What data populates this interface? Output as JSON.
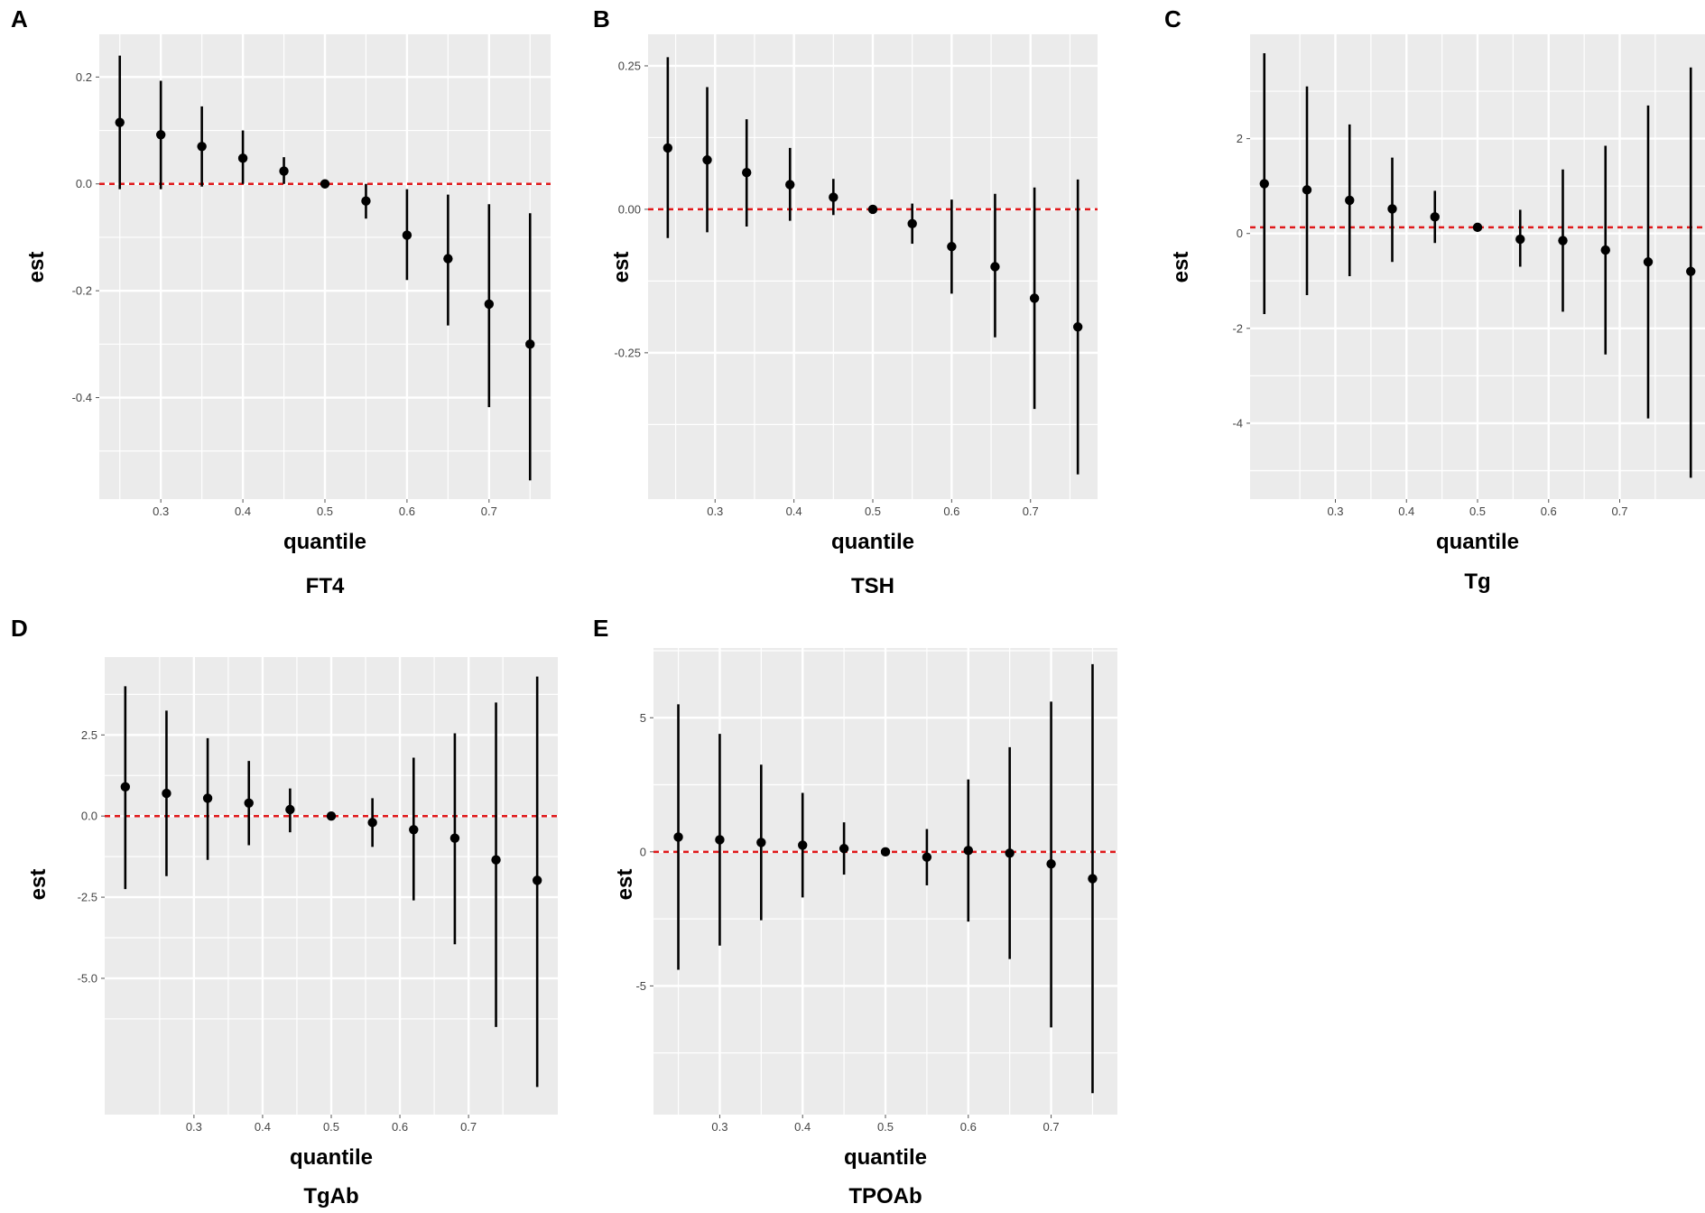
{
  "figure": {
    "colors": {
      "panel_bg": "#ebebeb",
      "grid": "#ffffff",
      "point": "#000000",
      "ref_line": "#e0191b"
    }
  },
  "chart_data": [
    {
      "type": "scatter",
      "label": "A",
      "title": "FT4",
      "xlabel": "quantile",
      "ylabel": "est",
      "xlim": [
        0.225,
        0.775
      ],
      "ylim": [
        -0.59,
        0.28
      ],
      "x_ticks": [
        0.3,
        0.4,
        0.5,
        0.6,
        0.7
      ],
      "x_tick_labels": [
        "0.3",
        "0.4",
        "0.5",
        "0.6",
        "0.7"
      ],
      "y_ticks": [
        0.2,
        0.0,
        -0.2,
        -0.4
      ],
      "y_tick_labels": [
        "0.2",
        "0.0",
        "-0.2",
        "-0.4"
      ],
      "reference_line": 0.0,
      "points": [
        {
          "x": 0.25,
          "est": 0.115,
          "lower": -0.01,
          "upper": 0.24
        },
        {
          "x": 0.3,
          "est": 0.092,
          "lower": -0.01,
          "upper": 0.193
        },
        {
          "x": 0.35,
          "est": 0.07,
          "lower": -0.005,
          "upper": 0.145
        },
        {
          "x": 0.4,
          "est": 0.048,
          "lower": 0.0,
          "upper": 0.1
        },
        {
          "x": 0.45,
          "est": 0.024,
          "lower": 0.0,
          "upper": 0.05
        },
        {
          "x": 0.5,
          "est": 0.0,
          "lower": 0.0,
          "upper": 0.0
        },
        {
          "x": 0.55,
          "est": -0.032,
          "lower": -0.065,
          "upper": 0.0
        },
        {
          "x": 0.6,
          "est": -0.096,
          "lower": -0.18,
          "upper": -0.01
        },
        {
          "x": 0.65,
          "est": -0.14,
          "lower": -0.265,
          "upper": -0.02
        },
        {
          "x": 0.7,
          "est": -0.225,
          "lower": -0.418,
          "upper": -0.038
        },
        {
          "x": 0.75,
          "est": -0.3,
          "lower": -0.555,
          "upper": -0.055
        }
      ]
    },
    {
      "type": "scatter",
      "label": "B",
      "title": "TSH",
      "xlabel": "quantile",
      "ylabel": "est",
      "xlim": [
        0.215,
        0.785
      ],
      "ylim": [
        -0.505,
        0.305
      ],
      "x_ticks": [
        0.3,
        0.4,
        0.5,
        0.6,
        0.7
      ],
      "x_tick_labels": [
        "0.3",
        "0.4",
        "0.5",
        "0.6",
        "0.7"
      ],
      "y_ticks": [
        0.25,
        0.0,
        -0.25
      ],
      "y_tick_labels": [
        "0.25",
        "0.00",
        "-0.25"
      ],
      "reference_line": 0.0,
      "points": [
        {
          "x": 0.24,
          "est": 0.107,
          "lower": -0.05,
          "upper": 0.265
        },
        {
          "x": 0.29,
          "est": 0.086,
          "lower": -0.04,
          "upper": 0.213
        },
        {
          "x": 0.34,
          "est": 0.064,
          "lower": -0.03,
          "upper": 0.157
        },
        {
          "x": 0.395,
          "est": 0.043,
          "lower": -0.02,
          "upper": 0.107
        },
        {
          "x": 0.45,
          "est": 0.021,
          "lower": -0.01,
          "upper": 0.053
        },
        {
          "x": 0.5,
          "est": 0.0,
          "lower": 0.0,
          "upper": 0.0
        },
        {
          "x": 0.55,
          "est": -0.025,
          "lower": -0.06,
          "upper": 0.01
        },
        {
          "x": 0.6,
          "est": -0.065,
          "lower": -0.147,
          "upper": 0.017
        },
        {
          "x": 0.655,
          "est": -0.1,
          "lower": -0.223,
          "upper": 0.027
        },
        {
          "x": 0.705,
          "est": -0.155,
          "lower": -0.348,
          "upper": 0.038
        },
        {
          "x": 0.76,
          "est": -0.205,
          "lower": -0.462,
          "upper": 0.052
        }
      ]
    },
    {
      "type": "scatter",
      "label": "C",
      "title": "Tg",
      "xlabel": "quantile",
      "ylabel": "est",
      "xlim": [
        0.18,
        0.82
      ],
      "ylim": [
        -5.6,
        4.2
      ],
      "x_ticks": [
        0.3,
        0.4,
        0.5,
        0.6,
        0.7
      ],
      "x_tick_labels": [
        "0.3",
        "0.4",
        "0.5",
        "0.6",
        "0.7"
      ],
      "y_ticks": [
        2,
        0,
        -2,
        -4
      ],
      "y_tick_labels": [
        "2",
        "0",
        "-2",
        "-4"
      ],
      "reference_line": 0.13,
      "points": [
        {
          "x": 0.2,
          "est": 1.05,
          "lower": -1.7,
          "upper": 3.8
        },
        {
          "x": 0.26,
          "est": 0.92,
          "lower": -1.3,
          "upper": 3.1
        },
        {
          "x": 0.32,
          "est": 0.7,
          "lower": -0.9,
          "upper": 2.3
        },
        {
          "x": 0.38,
          "est": 0.52,
          "lower": -0.6,
          "upper": 1.6
        },
        {
          "x": 0.44,
          "est": 0.35,
          "lower": -0.2,
          "upper": 0.9
        },
        {
          "x": 0.5,
          "est": 0.13,
          "lower": 0.13,
          "upper": 0.13
        },
        {
          "x": 0.56,
          "est": -0.12,
          "lower": -0.7,
          "upper": 0.5
        },
        {
          "x": 0.62,
          "est": -0.15,
          "lower": -1.65,
          "upper": 1.35
        },
        {
          "x": 0.68,
          "est": -0.35,
          "lower": -2.55,
          "upper": 1.85
        },
        {
          "x": 0.74,
          "est": -0.6,
          "lower": -3.9,
          "upper": 2.7
        },
        {
          "x": 0.8,
          "est": -0.8,
          "lower": -5.15,
          "upper": 3.5
        }
      ]
    },
    {
      "type": "scatter",
      "label": "D",
      "title": "TgAb",
      "xlabel": "quantile",
      "ylabel": "est",
      "xlim": [
        0.17,
        0.83
      ],
      "ylim": [
        -9.2,
        4.9
      ],
      "x_ticks": [
        0.3,
        0.4,
        0.5,
        0.6,
        0.7
      ],
      "x_tick_labels": [
        "0.3",
        "0.4",
        "0.5",
        "0.6",
        "0.7"
      ],
      "y_ticks": [
        2.5,
        0.0,
        -2.5,
        -5.0
      ],
      "y_tick_labels": [
        "2.5",
        "0.0",
        "-2.5",
        "-5.0"
      ],
      "reference_line": 0.0,
      "points": [
        {
          "x": 0.2,
          "est": 0.9,
          "lower": -2.25,
          "upper": 4.0
        },
        {
          "x": 0.26,
          "est": 0.7,
          "lower": -1.85,
          "upper": 3.25
        },
        {
          "x": 0.32,
          "est": 0.55,
          "lower": -1.35,
          "upper": 2.4
        },
        {
          "x": 0.38,
          "est": 0.4,
          "lower": -0.9,
          "upper": 1.7
        },
        {
          "x": 0.44,
          "est": 0.2,
          "lower": -0.5,
          "upper": 0.85
        },
        {
          "x": 0.5,
          "est": 0.0,
          "lower": 0.0,
          "upper": 0.0
        },
        {
          "x": 0.56,
          "est": -0.2,
          "lower": -0.95,
          "upper": 0.55
        },
        {
          "x": 0.62,
          "est": -0.42,
          "lower": -2.6,
          "upper": 1.8
        },
        {
          "x": 0.68,
          "est": -0.68,
          "lower": -3.95,
          "upper": 2.55
        },
        {
          "x": 0.74,
          "est": -1.35,
          "lower": -6.5,
          "upper": 3.5
        },
        {
          "x": 0.8,
          "est": -1.98,
          "lower": -8.35,
          "upper": 4.3
        }
      ]
    },
    {
      "type": "scatter",
      "label": "E",
      "title": "TPOAb",
      "xlabel": "quantile",
      "ylabel": "est",
      "xlim": [
        0.22,
        0.78
      ],
      "ylim": [
        -9.8,
        7.6
      ],
      "x_ticks": [
        0.3,
        0.4,
        0.5,
        0.6,
        0.7
      ],
      "x_tick_labels": [
        "0.3",
        "0.4",
        "0.5",
        "0.6",
        "0.7"
      ],
      "y_ticks": [
        5,
        0,
        -5
      ],
      "y_tick_labels": [
        "5",
        "0",
        "-5"
      ],
      "reference_line": 0.0,
      "points": [
        {
          "x": 0.25,
          "est": 0.55,
          "lower": -4.4,
          "upper": 5.5
        },
        {
          "x": 0.3,
          "est": 0.45,
          "lower": -3.5,
          "upper": 4.4
        },
        {
          "x": 0.35,
          "est": 0.35,
          "lower": -2.55,
          "upper": 3.25
        },
        {
          "x": 0.4,
          "est": 0.25,
          "lower": -1.7,
          "upper": 2.2
        },
        {
          "x": 0.45,
          "est": 0.12,
          "lower": -0.85,
          "upper": 1.1
        },
        {
          "x": 0.5,
          "est": 0.0,
          "lower": 0.0,
          "upper": 0.0
        },
        {
          "x": 0.55,
          "est": -0.2,
          "lower": -1.25,
          "upper": 0.85
        },
        {
          "x": 0.6,
          "est": 0.05,
          "lower": -2.6,
          "upper": 2.7
        },
        {
          "x": 0.65,
          "est": -0.05,
          "lower": -4.0,
          "upper": 3.9
        },
        {
          "x": 0.7,
          "est": -0.45,
          "lower": -6.55,
          "upper": 5.6
        },
        {
          "x": 0.75,
          "est": -1.0,
          "lower": -9.0,
          "upper": 7.0
        }
      ]
    }
  ]
}
